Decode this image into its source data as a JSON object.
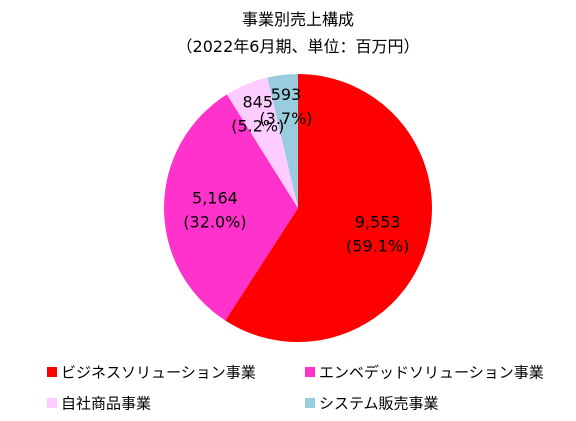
{
  "chart_data": {
    "type": "pie",
    "title": "事業別売上構成",
    "subtitle": "（2022年6月期、単位：百万円）",
    "categories": [
      "ビジネスソリューション事業",
      "エンベデッドソリューション事業",
      "自社商品事業",
      "システム販売事業"
    ],
    "values": [
      9553,
      5164,
      845,
      593
    ],
    "value_labels": [
      "9,553",
      "5,164",
      "845",
      "593"
    ],
    "percent_labels": [
      "(59.1%)",
      "(32.0%)",
      "(5.2%)",
      "(3.7%)"
    ],
    "colors": [
      "#ff0000",
      "#ff33cc",
      "#ffccff",
      "#99ccdd"
    ],
    "legend_position": "bottom"
  }
}
